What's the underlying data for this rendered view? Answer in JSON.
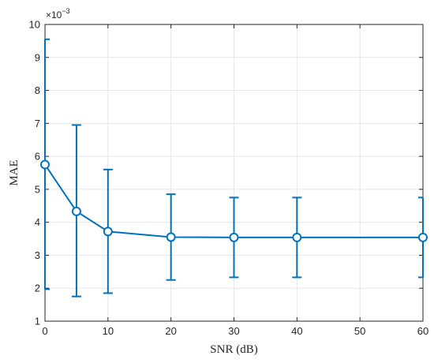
{
  "chart_data": {
    "type": "line",
    "title": "",
    "xlabel": "SNR (dB)",
    "ylabel": "MAE",
    "y_scale_label": "×10",
    "y_scale_exponent": "−3",
    "xlim": [
      0,
      60
    ],
    "ylim": [
      1,
      10
    ],
    "xticks": [
      0,
      10,
      20,
      30,
      40,
      50,
      60
    ],
    "yticks": [
      1,
      2,
      3,
      4,
      5,
      6,
      7,
      8,
      9,
      10
    ],
    "grid": true,
    "color": "#0072BD",
    "marker": "circle",
    "series": [
      {
        "x": [
          0,
          5,
          10,
          20,
          30,
          40,
          60
        ],
        "y": [
          5.75,
          4.33,
          3.72,
          3.55,
          3.54,
          3.54,
          3.54
        ],
        "error_lower": [
          1.97,
          1.75,
          1.85,
          2.25,
          2.33,
          2.33,
          2.33
        ],
        "error_upper": [
          9.55,
          6.95,
          5.6,
          4.85,
          4.75,
          4.75,
          4.75
        ]
      }
    ]
  }
}
